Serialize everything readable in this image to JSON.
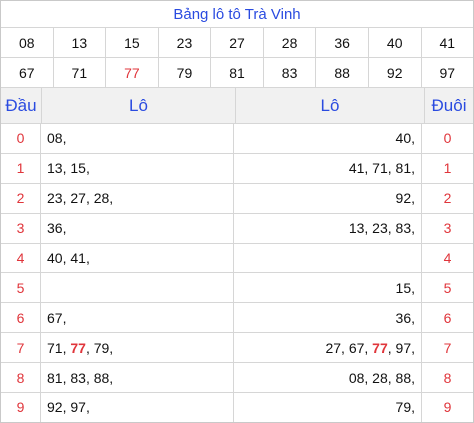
{
  "title": "Bảng lô tô Trà Vinh",
  "numbers_row1": [
    "08",
    "13",
    "15",
    "23",
    "27",
    "28",
    "36",
    "40",
    "41"
  ],
  "numbers_row2": [
    "67",
    "71",
    "77",
    "79",
    "81",
    "83",
    "88",
    "92",
    "97"
  ],
  "highlight_number": "77",
  "highlight_color": "#e0353b",
  "accent_color": "#2a4be0",
  "headers": {
    "dau": "Đầu",
    "lo_left": "Lô",
    "lo_right": "Lô",
    "duoi": "Đuôi"
  },
  "rows": [
    {
      "dau": "0",
      "lo_left": [
        "08"
      ],
      "lo_right": [
        "40"
      ],
      "duoi": "0"
    },
    {
      "dau": "1",
      "lo_left": [
        "13",
        "15"
      ],
      "lo_right": [
        "41",
        "71",
        "81"
      ],
      "duoi": "1"
    },
    {
      "dau": "2",
      "lo_left": [
        "23",
        "27",
        "28"
      ],
      "lo_right": [
        "92"
      ],
      "duoi": "2"
    },
    {
      "dau": "3",
      "lo_left": [
        "36"
      ],
      "lo_right": [
        "13",
        "23",
        "83"
      ],
      "duoi": "3"
    },
    {
      "dau": "4",
      "lo_left": [
        "40",
        "41"
      ],
      "lo_right": [],
      "duoi": "4"
    },
    {
      "dau": "5",
      "lo_left": [],
      "lo_right": [
        "15"
      ],
      "duoi": "5"
    },
    {
      "dau": "6",
      "lo_left": [
        "67"
      ],
      "lo_right": [
        "36"
      ],
      "duoi": "6"
    },
    {
      "dau": "7",
      "lo_left": [
        "71",
        "77",
        "79"
      ],
      "lo_right": [
        "27",
        "67",
        "77",
        "97"
      ],
      "duoi": "7"
    },
    {
      "dau": "8",
      "lo_left": [
        "81",
        "83",
        "88"
      ],
      "lo_right": [
        "08",
        "28",
        "88"
      ],
      "duoi": "8"
    },
    {
      "dau": "9",
      "lo_left": [
        "92",
        "97"
      ],
      "lo_right": [
        "79"
      ],
      "duoi": "9"
    }
  ]
}
